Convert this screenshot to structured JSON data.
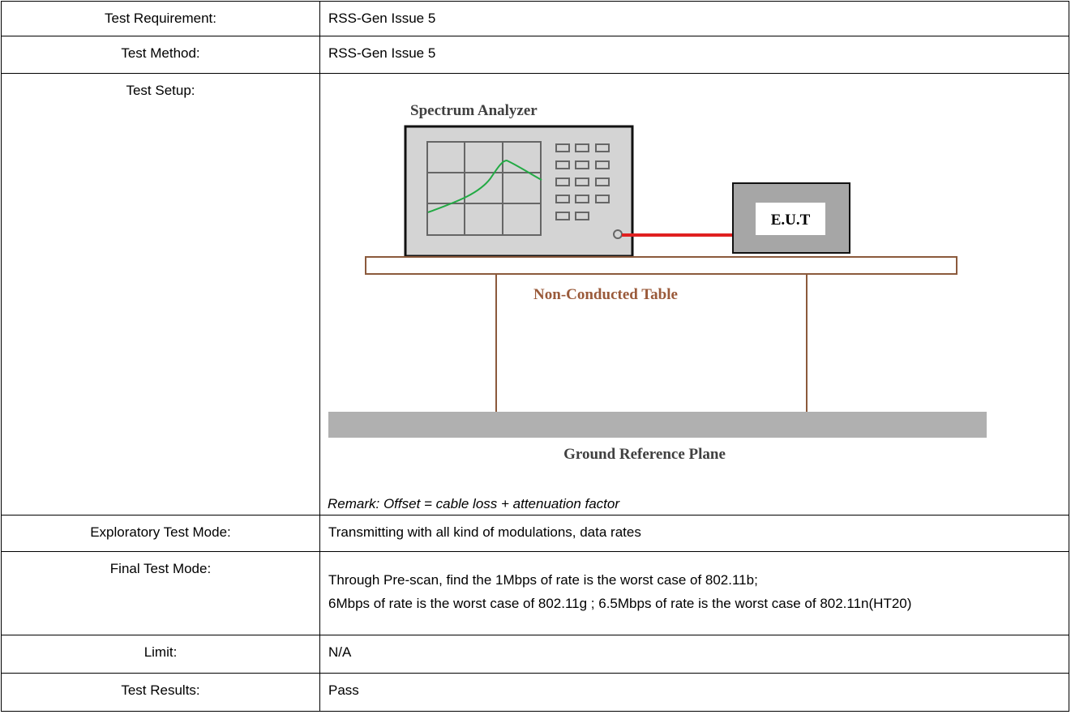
{
  "rows": [
    {
      "label": "Test Requirement:",
      "value": "RSS-Gen Issue 5"
    },
    {
      "label": "Test Method:",
      "value": "RSS-Gen Issue 5"
    },
    {
      "label": "Test Setup:",
      "analyzer_label": "Spectrum Analyzer",
      "eut_label": "E.U.T",
      "table_label": "Non-Conducted Table",
      "ground_label": "Ground Reference Plane",
      "remark": "Remark: Offset = cable loss + attenuation factor"
    },
    {
      "label": "Exploratory Test Mode:",
      "value": "Transmitting with all kind of modulations, data rates"
    },
    {
      "label": "Final Test Mode:",
      "paragraphs": [
        "Through Pre-scan, find the 1Mbps of rate is the worst case of 802.11b;",
        "6Mbps of rate is the worst case of 802.11g ; 6.5Mbps of rate is the worst case of 802.11n(HT20)"
      ]
    },
    {
      "label": "Limit:",
      "value": "N/A"
    },
    {
      "label": "Test Results:",
      "value": "Pass"
    }
  ]
}
